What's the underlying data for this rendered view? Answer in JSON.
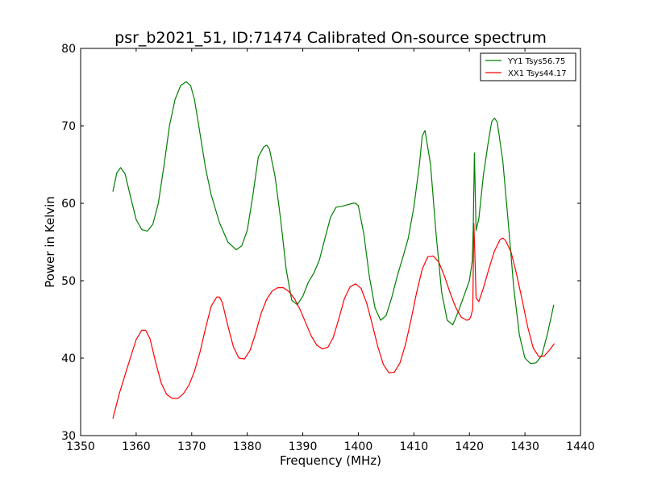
{
  "chart_data": {
    "type": "line",
    "title": "psr_b2021_51, ID:71474 Calibrated On-source spectrum",
    "xlabel": "Frequency (MHz)",
    "ylabel": "Power in Kelvin",
    "xlim": [
      1350,
      1440
    ],
    "ylim": [
      30,
      80
    ],
    "xticks": [
      "1350",
      "1360",
      "1370",
      "1380",
      "1390",
      "1400",
      "1410",
      "1420",
      "1430",
      "1440"
    ],
    "yticks": [
      "30",
      "40",
      "50",
      "60",
      "70",
      "80"
    ],
    "grid": false,
    "legend_position": "top-right",
    "series": [
      {
        "name": "YY1 Tsys56.75",
        "color": "#008000",
        "x": [
          1355.8,
          1356.5,
          1357.2,
          1358.0,
          1359.0,
          1360.0,
          1361.0,
          1362.0,
          1363.0,
          1364.0,
          1365.0,
          1366.0,
          1367.0,
          1368.0,
          1369.0,
          1369.8,
          1370.5,
          1371.5,
          1372.5,
          1373.5,
          1375.0,
          1376.5,
          1378.0,
          1379.0,
          1380.0,
          1381.0,
          1382.0,
          1383.0,
          1383.5,
          1384.0,
          1385.0,
          1386.0,
          1387.0,
          1388.0,
          1389.0,
          1390.0,
          1391.0,
          1392.0,
          1393.0,
          1394.0,
          1395.0,
          1396.0,
          1397.0,
          1398.0,
          1399.0,
          1399.5,
          1400.0,
          1401.0,
          1402.0,
          1403.0,
          1404.0,
          1405.0,
          1406.0,
          1407.0,
          1408.0,
          1409.0,
          1410.0,
          1411.0,
          1411.5,
          1412.0,
          1413.0,
          1414.0,
          1415.0,
          1416.0,
          1417.0,
          1418.0,
          1419.0,
          1420.0,
          1420.5,
          1420.7,
          1420.9,
          1421.2,
          1421.7,
          1422.5,
          1423.3,
          1424.0,
          1424.5,
          1425.0,
          1426.0,
          1427.0,
          1428.0,
          1429.0,
          1430.0,
          1431.0,
          1432.0,
          1433.0,
          1434.0,
          1435.2
        ],
        "y": [
          61.5,
          63.9,
          64.6,
          63.8,
          60.8,
          57.9,
          56.6,
          56.4,
          57.3,
          60.0,
          64.8,
          70.0,
          73.4,
          75.2,
          75.7,
          75.2,
          73.4,
          69.0,
          64.5,
          61.1,
          57.5,
          55.0,
          54.0,
          54.5,
          56.5,
          61.0,
          66.0,
          67.3,
          67.5,
          67.0,
          63.5,
          58.0,
          51.5,
          47.5,
          46.9,
          48.0,
          49.8,
          51.0,
          52.7,
          55.5,
          58.2,
          59.5,
          59.6,
          59.8,
          60.0,
          60.0,
          59.7,
          56.0,
          50.5,
          46.5,
          44.9,
          45.5,
          47.8,
          50.6,
          53.0,
          55.5,
          59.5,
          65.0,
          68.7,
          69.4,
          65.0,
          56.0,
          48.5,
          44.9,
          44.3,
          46.0,
          48.0,
          50.0,
          52.5,
          57.0,
          66.5,
          56.5,
          58.0,
          63.5,
          67.5,
          70.5,
          71.0,
          70.5,
          65.5,
          57.5,
          49.0,
          43.0,
          40.0,
          39.3,
          39.4,
          40.3,
          43.0,
          46.9
        ]
      },
      {
        "name": "XX1 Tsys44.17",
        "color": "#ff0000",
        "x": [
          1355.8,
          1357.0,
          1358.5,
          1360.0,
          1361.0,
          1361.7,
          1362.5,
          1363.5,
          1364.5,
          1365.5,
          1366.5,
          1367.5,
          1368.5,
          1369.5,
          1370.5,
          1371.5,
          1372.5,
          1373.5,
          1374.5,
          1375.0,
          1375.5,
          1376.5,
          1377.5,
          1378.5,
          1379.5,
          1380.5,
          1381.5,
          1382.5,
          1383.5,
          1384.5,
          1385.5,
          1386.5,
          1387.5,
          1388.5,
          1389.5,
          1390.5,
          1391.5,
          1392.5,
          1393.5,
          1394.5,
          1395.5,
          1396.5,
          1397.5,
          1398.5,
          1399.5,
          1400.5,
          1401.5,
          1402.5,
          1403.5,
          1404.5,
          1405.5,
          1406.5,
          1407.5,
          1408.5,
          1409.5,
          1410.5,
          1411.5,
          1412.5,
          1413.5,
          1414.5,
          1415.5,
          1416.5,
          1417.5,
          1418.5,
          1419.5,
          1420.0,
          1420.3,
          1420.6,
          1420.8,
          1421.0,
          1421.2,
          1421.7,
          1422.5,
          1423.5,
          1424.5,
          1425.5,
          1426.0,
          1426.5,
          1427.5,
          1428.5,
          1429.5,
          1430.5,
          1431.5,
          1432.5,
          1433.5,
          1434.5,
          1435.3
        ],
        "y": [
          32.2,
          35.5,
          39.0,
          42.4,
          43.6,
          43.6,
          42.5,
          39.5,
          36.8,
          35.3,
          34.8,
          34.8,
          35.4,
          36.5,
          38.3,
          40.8,
          43.9,
          46.7,
          47.9,
          47.9,
          47.2,
          44.2,
          41.5,
          40.0,
          39.9,
          41.0,
          43.2,
          45.8,
          47.6,
          48.7,
          49.1,
          49.1,
          48.6,
          47.7,
          46.3,
          44.6,
          42.9,
          41.7,
          41.2,
          41.4,
          42.7,
          45.1,
          47.7,
          49.2,
          49.6,
          49.0,
          47.1,
          44.4,
          41.5,
          39.2,
          38.1,
          38.2,
          39.4,
          41.8,
          45.0,
          48.5,
          51.5,
          53.1,
          53.2,
          52.4,
          50.6,
          48.5,
          46.6,
          45.3,
          44.9,
          45.0,
          45.5,
          46.4,
          57.4,
          53.0,
          47.8,
          47.3,
          49.0,
          51.5,
          53.8,
          55.3,
          55.5,
          55.2,
          53.7,
          50.8,
          47.5,
          44.0,
          41.3,
          40.2,
          40.3,
          41.1,
          41.9
        ]
      }
    ]
  }
}
